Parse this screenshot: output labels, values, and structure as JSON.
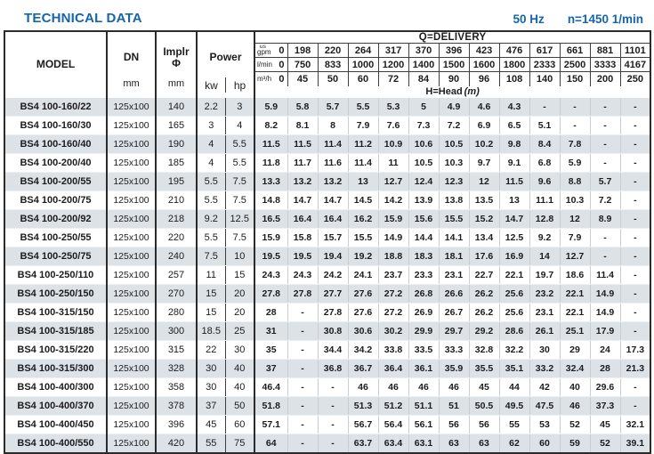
{
  "page": {
    "title": "TECHNICAL DATA",
    "frequency": "50 Hz",
    "speed": "n=1450 1/min",
    "accent_color": "#1565ac",
    "stripe_color": "#dde2e6"
  },
  "table": {
    "header": {
      "model_label": "MODEL",
      "dn_label": "DN",
      "dn_unit": "mm",
      "impeller_label": "Implr",
      "impeller_symbol": "Φ",
      "impeller_unit": "mm",
      "power_label": "Power",
      "power_kw_label": "kw",
      "power_hp_label": "hp",
      "delivery_label": "Q=DELIVERY",
      "head_label": "H=Head",
      "head_unit": "(m)",
      "delivery_rows": [
        {
          "unit_top": "us",
          "unit": "gpm",
          "values": [
            "0",
            "198",
            "220",
            "264",
            "317",
            "370",
            "396",
            "423",
            "476",
            "617",
            "661",
            "881",
            "1101"
          ]
        },
        {
          "unit_top": "",
          "unit": "l/min",
          "values": [
            "0",
            "750",
            "833",
            "1000",
            "1200",
            "1400",
            "1500",
            "1600",
            "1800",
            "2333",
            "2500",
            "3333",
            "4167"
          ]
        },
        {
          "unit_top": "",
          "unit": "m³/h",
          "values": [
            "0",
            "45",
            "50",
            "60",
            "72",
            "84",
            "90",
            "96",
            "108",
            "140",
            "150",
            "200",
            "250"
          ]
        }
      ]
    },
    "rows": [
      {
        "model": "BS4 100-160/22",
        "dn": "125x100",
        "impeller": "140",
        "kw": "2.2",
        "hp": "3",
        "head": [
          "5.9",
          "5.8",
          "5.7",
          "5.5",
          "5.3",
          "5",
          "4.9",
          "4.6",
          "4.3",
          "-",
          "-",
          "-",
          "-"
        ]
      },
      {
        "model": "BS4 100-160/30",
        "dn": "125x100",
        "impeller": "165",
        "kw": "3",
        "hp": "4",
        "head": [
          "8.2",
          "8.1",
          "8",
          "7.9",
          "7.6",
          "7.3",
          "7.2",
          "6.9",
          "6.5",
          "5.1",
          "-",
          "-",
          "-"
        ]
      },
      {
        "model": "BS4 100-160/40",
        "dn": "125x100",
        "impeller": "190",
        "kw": "4",
        "hp": "5.5",
        "head": [
          "11.5",
          "11.5",
          "11.4",
          "11.2",
          "10.9",
          "10.6",
          "10.5",
          "10.2",
          "9.8",
          "8.4",
          "7.8",
          "-",
          "-"
        ]
      },
      {
        "model": "BS4 100-200/40",
        "dn": "125x100",
        "impeller": "185",
        "kw": "4",
        "hp": "5.5",
        "head": [
          "11.8",
          "11.7",
          "11.6",
          "11.4",
          "11",
          "10.5",
          "10.3",
          "9.7",
          "9.1",
          "6.8",
          "5.9",
          "-",
          "-"
        ]
      },
      {
        "model": "BS4 100-200/55",
        "dn": "125x100",
        "impeller": "195",
        "kw": "5.5",
        "hp": "7.5",
        "head": [
          "13.3",
          "13.2",
          "13.2",
          "13",
          "12.7",
          "12.4",
          "12.3",
          "12",
          "11.5",
          "9.6",
          "8.8",
          "5.7",
          "-"
        ]
      },
      {
        "model": "BS4 100-200/75",
        "dn": "125x100",
        "impeller": "210",
        "kw": "5.5",
        "hp": "7.5",
        "head": [
          "14.8",
          "14.7",
          "14.7",
          "14.5",
          "14.2",
          "13.9",
          "13.8",
          "13.5",
          "13",
          "11.1",
          "10.3",
          "7.2",
          "-"
        ]
      },
      {
        "model": "BS4 100-200/92",
        "dn": "125x100",
        "impeller": "218",
        "kw": "9.2",
        "hp": "12.5",
        "head": [
          "16.5",
          "16.4",
          "16.4",
          "16.2",
          "15.9",
          "15.6",
          "15.5",
          "15.2",
          "14.7",
          "12.8",
          "12",
          "8.9",
          "-"
        ]
      },
      {
        "model": "BS4 100-250/55",
        "dn": "125x100",
        "impeller": "220",
        "kw": "5.5",
        "hp": "7.5",
        "head": [
          "15.9",
          "15.8",
          "15.7",
          "15.5",
          "14.9",
          "14.4",
          "14.1",
          "13.4",
          "12.5",
          "9.2",
          "7.9",
          "-",
          "-"
        ]
      },
      {
        "model": "BS4 100-250/75",
        "dn": "125x100",
        "impeller": "240",
        "kw": "7.5",
        "hp": "10",
        "head": [
          "19.5",
          "19.5",
          "19.4",
          "19.2",
          "18.8",
          "18.3",
          "18.1",
          "17.6",
          "16.9",
          "14",
          "12.7",
          "-",
          "-"
        ]
      },
      {
        "model": "BS4 100-250/110",
        "dn": "125x100",
        "impeller": "257",
        "kw": "11",
        "hp": "15",
        "head": [
          "24.3",
          "24.3",
          "24.2",
          "24.1",
          "23.7",
          "23.3",
          "23.1",
          "22.7",
          "22.1",
          "19.7",
          "18.6",
          "11.4",
          "-"
        ]
      },
      {
        "model": "BS4 100-250/150",
        "dn": "125x100",
        "impeller": "270",
        "kw": "15",
        "hp": "20",
        "head": [
          "27.8",
          "27.8",
          "27.7",
          "27.6",
          "27.2",
          "26.8",
          "26.6",
          "26.2",
          "25.6",
          "23.2",
          "22.1",
          "14.9",
          "-"
        ]
      },
      {
        "model": "BS4 100-315/150",
        "dn": "125x100",
        "impeller": "280",
        "kw": "15",
        "hp": "20",
        "head": [
          "28",
          "-",
          "27.8",
          "27.6",
          "27.2",
          "26.9",
          "26.7",
          "26.2",
          "25.6",
          "23.1",
          "22.1",
          "14.9",
          "-"
        ]
      },
      {
        "model": "BS4 100-315/185",
        "dn": "125x100",
        "impeller": "300",
        "kw": "18.5",
        "hp": "25",
        "head": [
          "31",
          "-",
          "30.8",
          "30.6",
          "30.2",
          "29.9",
          "29.7",
          "29.2",
          "28.6",
          "26.1",
          "25.1",
          "17.9",
          "-"
        ]
      },
      {
        "model": "BS4 100-315/220",
        "dn": "125x100",
        "impeller": "315",
        "kw": "22",
        "hp": "30",
        "head": [
          "35",
          "-",
          "34.4",
          "34.2",
          "33.8",
          "33.5",
          "33.3",
          "32.8",
          "32.2",
          "30",
          "29",
          "24",
          "17.3"
        ]
      },
      {
        "model": "BS4 100-315/300",
        "dn": "125x100",
        "impeller": "328",
        "kw": "30",
        "hp": "40",
        "head": [
          "37",
          "-",
          "36.8",
          "36.7",
          "36.4",
          "36.1",
          "35.9",
          "35.5",
          "35.1",
          "33.2",
          "32.4",
          "28",
          "21.3"
        ]
      },
      {
        "model": "BS4 100-400/300",
        "dn": "125x100",
        "impeller": "358",
        "kw": "30",
        "hp": "40",
        "head": [
          "46.4",
          "-",
          "-",
          "46",
          "46",
          "46",
          "46",
          "45",
          "44",
          "42",
          "40",
          "29.6",
          "-"
        ]
      },
      {
        "model": "BS4 100-400/370",
        "dn": "125x100",
        "impeller": "378",
        "kw": "37",
        "hp": "50",
        "head": [
          "51.8",
          "-",
          "-",
          "51.3",
          "51.2",
          "51.1",
          "51",
          "50.5",
          "49.5",
          "47.5",
          "46",
          "37.3",
          "-"
        ]
      },
      {
        "model": "BS4 100-400/450",
        "dn": "125x100",
        "impeller": "396",
        "kw": "45",
        "hp": "60",
        "head": [
          "57.1",
          "-",
          "-",
          "56.7",
          "56.4",
          "56.1",
          "56",
          "56",
          "55",
          "53",
          "52",
          "45",
          "32.1"
        ]
      },
      {
        "model": "BS4 100-400/550",
        "dn": "125x100",
        "impeller": "420",
        "kw": "55",
        "hp": "75",
        "head": [
          "64",
          "-",
          "-",
          "63.7",
          "63.4",
          "63.1",
          "63",
          "63",
          "62",
          "60",
          "59",
          "52",
          "39.1"
        ]
      }
    ]
  }
}
